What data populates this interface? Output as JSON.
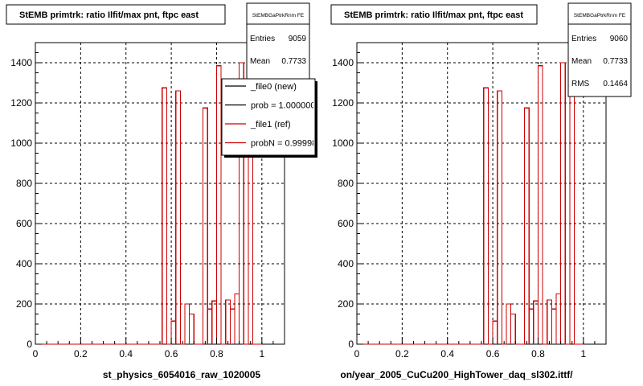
{
  "chart_data": [
    {
      "type": "bar",
      "title": "StEMB primtrk: ratio Ilfit/max pnt, ftpc east",
      "xlabel": "st_physics_6054016_raw_1020005",
      "ylabel": "",
      "xlim": [
        0,
        1.1
      ],
      "ylim": [
        0,
        1500
      ],
      "x_ticks": [
        "0",
        "0.2",
        "0.4",
        "0.6",
        "0.8",
        "1"
      ],
      "y_ticks": [
        "0",
        "200",
        "400",
        "600",
        "800",
        "1000",
        "1200",
        "1400"
      ],
      "grid": true,
      "stats": {
        "name": "StEMBGaPtrkRnm FE",
        "rows": [
          {
            "label": "Entries",
            "value": "9059"
          },
          {
            "label": "Mean",
            "value": "0.7733"
          }
        ]
      },
      "legend": {
        "placement": "top-right",
        "entries": [
          {
            "label": "_file0 (new)",
            "color": "#000000"
          },
          {
            "label": "prob = 1.000000",
            "color": "#000000"
          },
          {
            "label": "_file1 (ref)",
            "color": "#cc0000"
          },
          {
            "label": "probN = 0.999989",
            "color": "#cc0000"
          }
        ]
      },
      "series": [
        {
          "color": "#000000",
          "bins": [
            [
              0.56,
              0.58,
              1275
            ],
            [
              0.6,
              0.62,
              115
            ],
            [
              0.62,
              0.64,
              1260
            ],
            [
              0.66,
              0.68,
              200
            ],
            [
              0.68,
              0.7,
              150
            ],
            [
              0.7,
              0.72,
              0
            ],
            [
              0.74,
              0.76,
              1175
            ],
            [
              0.76,
              0.78,
              175
            ],
            [
              0.78,
              0.8,
              215
            ],
            [
              0.8,
              0.82,
              1385
            ],
            [
              0.84,
              0.86,
              220
            ],
            [
              0.86,
              0.88,
              175
            ],
            [
              0.88,
              0.9,
              250
            ],
            [
              0.9,
              0.92,
              1400
            ],
            [
              0.94,
              0.96,
              1400
            ]
          ]
        },
        {
          "color": "#cc0000",
          "bins": [
            [
              0.56,
              0.58,
              1275
            ],
            [
              0.6,
              0.62,
              115
            ],
            [
              0.62,
              0.64,
              1260
            ],
            [
              0.66,
              0.68,
              200
            ],
            [
              0.68,
              0.7,
              150
            ],
            [
              0.7,
              0.72,
              0
            ],
            [
              0.74,
              0.76,
              1175
            ],
            [
              0.76,
              0.78,
              175
            ],
            [
              0.78,
              0.8,
              215
            ],
            [
              0.8,
              0.82,
              1385
            ],
            [
              0.84,
              0.86,
              220
            ],
            [
              0.86,
              0.88,
              175
            ],
            [
              0.88,
              0.9,
              250
            ],
            [
              0.9,
              0.92,
              1400
            ],
            [
              0.94,
              0.96,
              1400
            ]
          ]
        }
      ]
    },
    {
      "type": "bar",
      "title": "StEMB primtrk: ratio Ilfit/max pnt, ftpc east",
      "xlabel": "on/year_2005_CuCu200_HighTower_daq_sl302.ittf/",
      "ylabel": "",
      "xlim": [
        0,
        1.1
      ],
      "ylim": [
        0,
        1500
      ],
      "x_ticks": [
        "0",
        "0.2",
        "0.4",
        "0.6",
        "0.8",
        "1"
      ],
      "y_ticks": [
        "0",
        "200",
        "400",
        "600",
        "800",
        "1000",
        "1200",
        "1400"
      ],
      "grid": true,
      "stats": {
        "name": "StEMBGaPtrkRnm FE",
        "rows": [
          {
            "label": "Entries",
            "value": "9060"
          },
          {
            "label": "Mean",
            "value": "0.7733"
          },
          {
            "label": "RMS",
            "value": "0.1464"
          }
        ]
      },
      "series": [
        {
          "color": "#cc0000",
          "bins": [
            [
              0.56,
              0.58,
              1275
            ],
            [
              0.6,
              0.62,
              115
            ],
            [
              0.62,
              0.64,
              1260
            ],
            [
              0.66,
              0.68,
              200
            ],
            [
              0.68,
              0.7,
              150
            ],
            [
              0.7,
              0.72,
              0
            ],
            [
              0.74,
              0.76,
              1175
            ],
            [
              0.76,
              0.78,
              175
            ],
            [
              0.78,
              0.8,
              215
            ],
            [
              0.8,
              0.82,
              1385
            ],
            [
              0.84,
              0.86,
              220
            ],
            [
              0.86,
              0.88,
              175
            ],
            [
              0.88,
              0.9,
              250
            ],
            [
              0.9,
              0.92,
              1400
            ],
            [
              0.94,
              0.96,
              1400
            ]
          ]
        }
      ]
    }
  ]
}
